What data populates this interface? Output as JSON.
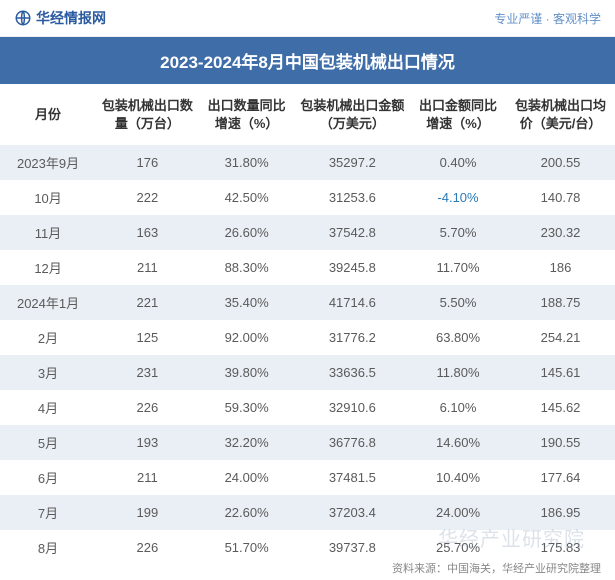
{
  "header": {
    "logo_text": "华经情报网",
    "tagline": "专业严谨 · 客观科学"
  },
  "title": "2023-2024年8月中国包装机械出口情况",
  "table": {
    "columns": [
      "月份",
      "包装机械出口数量（万台）",
      "出口数量同比增速（%）",
      "包装机械出口金额（万美元）",
      "出口金额同比增速（%）",
      "包装机械出口均价（美元/台）"
    ],
    "rows": [
      {
        "month": "2023年9月",
        "qty": "176",
        "qty_yoy": "31.80%",
        "amount": "35297.2",
        "amount_yoy": "0.40%",
        "avg_price": "200.55",
        "neg": false
      },
      {
        "month": "10月",
        "qty": "222",
        "qty_yoy": "42.50%",
        "amount": "31253.6",
        "amount_yoy": "-4.10%",
        "avg_price": "140.78",
        "neg": true
      },
      {
        "month": "11月",
        "qty": "163",
        "qty_yoy": "26.60%",
        "amount": "37542.8",
        "amount_yoy": "5.70%",
        "avg_price": "230.32",
        "neg": false
      },
      {
        "month": "12月",
        "qty": "211",
        "qty_yoy": "88.30%",
        "amount": "39245.8",
        "amount_yoy": "11.70%",
        "avg_price": "186",
        "neg": false
      },
      {
        "month": "2024年1月",
        "qty": "221",
        "qty_yoy": "35.40%",
        "amount": "41714.6",
        "amount_yoy": "5.50%",
        "avg_price": "188.75",
        "neg": false
      },
      {
        "month": "2月",
        "qty": "125",
        "qty_yoy": "92.00%",
        "amount": "31776.2",
        "amount_yoy": "63.80%",
        "avg_price": "254.21",
        "neg": false
      },
      {
        "month": "3月",
        "qty": "231",
        "qty_yoy": "39.80%",
        "amount": "33636.5",
        "amount_yoy": "11.80%",
        "avg_price": "145.61",
        "neg": false
      },
      {
        "month": "4月",
        "qty": "226",
        "qty_yoy": "59.30%",
        "amount": "32910.6",
        "amount_yoy": "6.10%",
        "avg_price": "145.62",
        "neg": false
      },
      {
        "month": "5月",
        "qty": "193",
        "qty_yoy": "32.20%",
        "amount": "36776.8",
        "amount_yoy": "14.60%",
        "avg_price": "190.55",
        "neg": false
      },
      {
        "month": "6月",
        "qty": "211",
        "qty_yoy": "24.00%",
        "amount": "37481.5",
        "amount_yoy": "10.40%",
        "avg_price": "177.64",
        "neg": false
      },
      {
        "month": "7月",
        "qty": "199",
        "qty_yoy": "22.60%",
        "amount": "37203.4",
        "amount_yoy": "24.00%",
        "avg_price": "186.95",
        "neg": false
      },
      {
        "month": "8月",
        "qty": "226",
        "qty_yoy": "51.70%",
        "amount": "39737.8",
        "amount_yoy": "25.70%",
        "avg_price": "175.83",
        "neg": false
      }
    ]
  },
  "footer": {
    "source": "资料来源：中国海关，华经产业研究院整理"
  },
  "watermark": "华经产业研究院",
  "styling": {
    "title_bg": "#3f6da8",
    "title_color": "#ffffff",
    "stripe_bg": "#eaeff6",
    "text_color": "#5a5a5a",
    "header_text_color": "#333333",
    "negative_color": "#2a7ab8",
    "logo_color": "#2a5aa0",
    "tagline_color": "#6190c8",
    "footer_color": "#888888",
    "title_fontsize": 17,
    "header_fontsize": 13,
    "cell_fontsize": 13,
    "footer_fontsize": 11
  }
}
